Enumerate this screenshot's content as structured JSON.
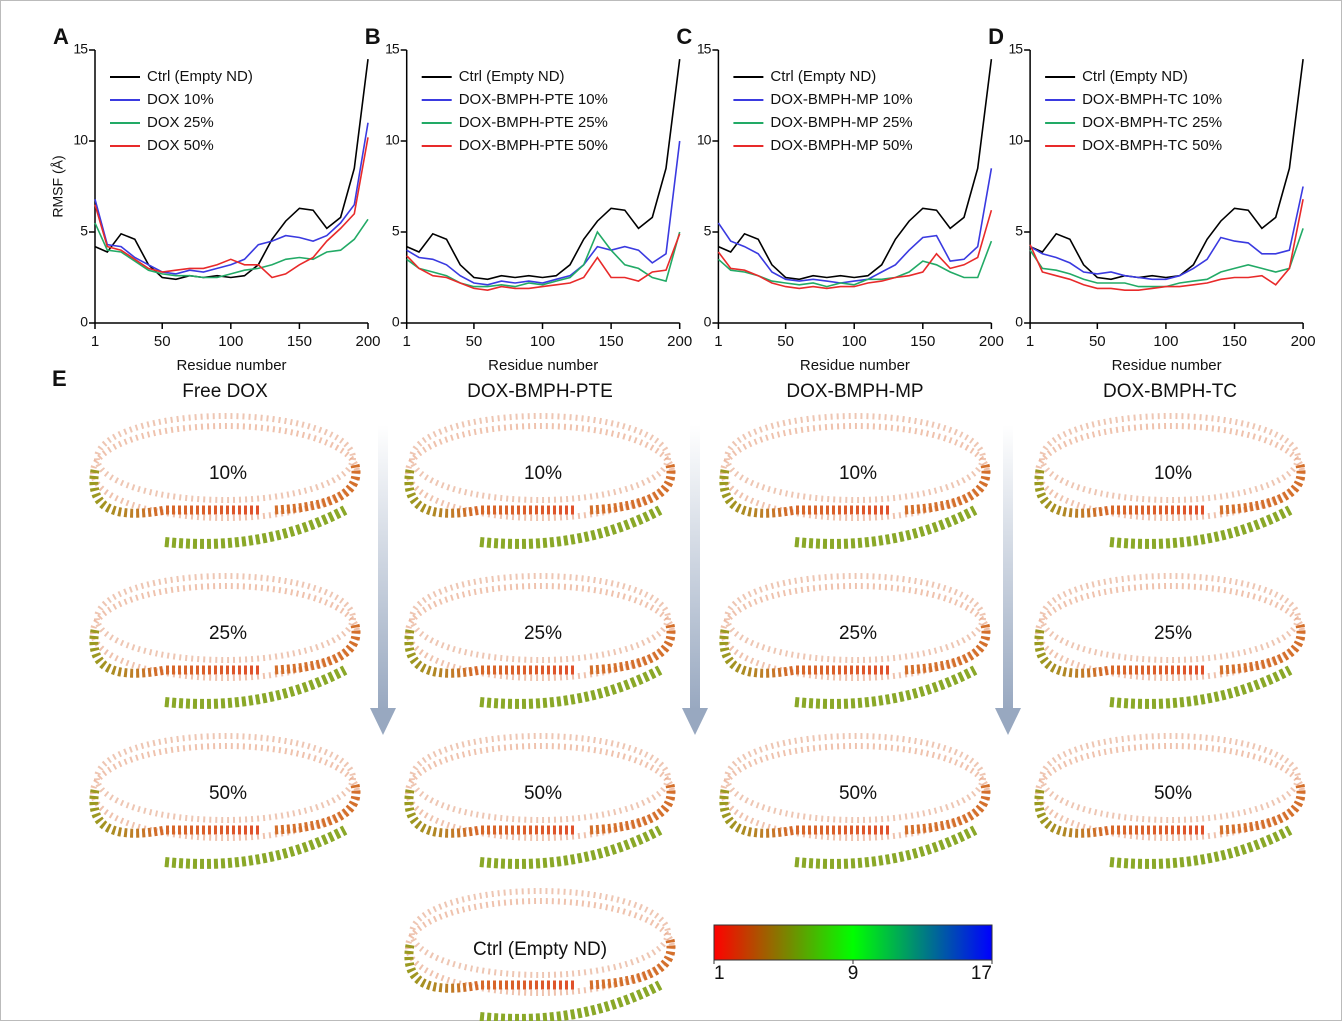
{
  "chart_data": [
    {
      "type": "line",
      "panel": "A",
      "ylabel": "RMSF (Å)",
      "xlabel": "Residue number",
      "x": [
        1,
        10,
        20,
        30,
        40,
        50,
        60,
        70,
        80,
        90,
        100,
        110,
        120,
        130,
        140,
        150,
        160,
        170,
        180,
        190,
        200
      ],
      "xlim": [
        1,
        200
      ],
      "xticks": [
        1,
        50,
        100,
        150,
        200
      ],
      "ylim": [
        0,
        15
      ],
      "yticks": [
        0,
        5,
        10,
        15
      ],
      "series": [
        {
          "name": "Ctrl (Empty ND)",
          "color": "#000000",
          "values": [
            4.2,
            3.9,
            4.9,
            4.6,
            3.2,
            2.5,
            2.4,
            2.6,
            2.5,
            2.6,
            2.5,
            2.6,
            3.2,
            4.6,
            5.6,
            6.3,
            6.2,
            5.2,
            5.8,
            8.5,
            14.5
          ]
        },
        {
          "name": "DOX 10%",
          "color": "#3a3ae0",
          "values": [
            6.8,
            4.3,
            4.2,
            3.6,
            3.2,
            2.8,
            2.7,
            2.9,
            2.8,
            3.0,
            3.2,
            3.5,
            4.3,
            4.5,
            4.8,
            4.7,
            4.5,
            4.8,
            5.5,
            6.5,
            11
          ]
        },
        {
          "name": "DOX 25%",
          "color": "#22aa66",
          "values": [
            5.5,
            4.0,
            3.9,
            3.4,
            2.9,
            2.7,
            2.6,
            2.6,
            2.5,
            2.5,
            2.7,
            2.9,
            3.0,
            3.2,
            3.5,
            3.6,
            3.5,
            3.9,
            4.0,
            4.6,
            5.7
          ]
        },
        {
          "name": "DOX 50%",
          "color": "#e82a2a",
          "values": [
            6.5,
            4.2,
            4.0,
            3.5,
            3.0,
            2.8,
            2.9,
            3.0,
            3.0,
            3.2,
            3.5,
            3.2,
            3.2,
            2.5,
            2.7,
            3.2,
            3.6,
            4.5,
            5.2,
            6.0,
            10.2
          ]
        }
      ]
    },
    {
      "type": "line",
      "panel": "B",
      "xlabel": "Residue number",
      "x": [
        1,
        10,
        20,
        30,
        40,
        50,
        60,
        70,
        80,
        90,
        100,
        110,
        120,
        130,
        140,
        150,
        160,
        170,
        180,
        190,
        200
      ],
      "xlim": [
        1,
        200
      ],
      "xticks": [
        1,
        50,
        100,
        150,
        200
      ],
      "ylim": [
        0,
        15
      ],
      "yticks": [
        0,
        5,
        10,
        15
      ],
      "series": [
        {
          "name": "Ctrl (Empty ND)",
          "color": "#000000",
          "values": [
            4.2,
            3.9,
            4.9,
            4.6,
            3.2,
            2.5,
            2.4,
            2.6,
            2.5,
            2.6,
            2.5,
            2.6,
            3.2,
            4.6,
            5.6,
            6.3,
            6.2,
            5.2,
            5.8,
            8.5,
            14.5
          ]
        },
        {
          "name": "DOX-BMPH-PTE 10%",
          "color": "#3a3ae0",
          "values": [
            4.0,
            3.6,
            3.5,
            3.2,
            2.6,
            2.2,
            2.1,
            2.3,
            2.2,
            2.3,
            2.2,
            2.4,
            2.6,
            3.2,
            4.2,
            4.0,
            4.2,
            4.0,
            3.3,
            3.8,
            10
          ]
        },
        {
          "name": "DOX-BMPH-PTE 25%",
          "color": "#22aa66",
          "values": [
            3.5,
            3.0,
            2.8,
            2.6,
            2.2,
            2.0,
            2.0,
            2.1,
            2.0,
            2.2,
            2.1,
            2.3,
            2.5,
            3.2,
            5.0,
            4.0,
            3.2,
            3.0,
            2.5,
            2.3,
            5.0
          ]
        },
        {
          "name": "DOX-BMPH-PTE 50%",
          "color": "#e82a2a",
          "values": [
            3.7,
            3.0,
            2.6,
            2.5,
            2.2,
            1.9,
            1.8,
            2.0,
            1.9,
            1.9,
            2.0,
            2.1,
            2.2,
            2.5,
            3.6,
            2.5,
            2.5,
            2.3,
            2.8,
            2.9,
            4.9
          ]
        }
      ]
    },
    {
      "type": "line",
      "panel": "C",
      "xlabel": "Residue number",
      "x": [
        1,
        10,
        20,
        30,
        40,
        50,
        60,
        70,
        80,
        90,
        100,
        110,
        120,
        130,
        140,
        150,
        160,
        170,
        180,
        190,
        200
      ],
      "xlim": [
        1,
        200
      ],
      "xticks": [
        1,
        50,
        100,
        150,
        200
      ],
      "ylim": [
        0,
        15
      ],
      "yticks": [
        0,
        5,
        10,
        15
      ],
      "series": [
        {
          "name": "Ctrl (Empty ND)",
          "color": "#000000",
          "values": [
            4.2,
            3.9,
            4.9,
            4.6,
            3.2,
            2.5,
            2.4,
            2.6,
            2.5,
            2.6,
            2.5,
            2.6,
            3.2,
            4.6,
            5.6,
            6.3,
            6.2,
            5.2,
            5.8,
            8.5,
            14.5
          ]
        },
        {
          "name": "DOX-BMPH-MP 10%",
          "color": "#3a3ae0",
          "values": [
            5.5,
            4.5,
            4.2,
            3.8,
            2.8,
            2.4,
            2.3,
            2.4,
            2.3,
            2.2,
            2.3,
            2.4,
            2.8,
            3.2,
            4.0,
            4.7,
            4.8,
            3.4,
            3.5,
            4.2,
            8.5
          ]
        },
        {
          "name": "DOX-BMPH-MP 25%",
          "color": "#22aa66",
          "values": [
            3.5,
            2.9,
            2.8,
            2.6,
            2.3,
            2.2,
            2.1,
            2.2,
            2.0,
            2.2,
            2.1,
            2.4,
            2.4,
            2.5,
            2.8,
            3.4,
            3.2,
            2.8,
            2.5,
            2.5,
            4.5
          ]
        },
        {
          "name": "DOX-BMPH-MP 50%",
          "color": "#e82a2a",
          "values": [
            3.9,
            3.0,
            2.9,
            2.6,
            2.2,
            2.0,
            1.9,
            2.0,
            1.9,
            2.0,
            2.0,
            2.2,
            2.3,
            2.5,
            2.6,
            2.8,
            3.8,
            3.0,
            3.2,
            3.6,
            6.2
          ]
        }
      ]
    },
    {
      "type": "line",
      "panel": "D",
      "xlabel": "Residue number",
      "x": [
        1,
        10,
        20,
        30,
        40,
        50,
        60,
        70,
        80,
        90,
        100,
        110,
        120,
        130,
        140,
        150,
        160,
        170,
        180,
        190,
        200
      ],
      "xlim": [
        1,
        200
      ],
      "xticks": [
        1,
        50,
        100,
        150,
        200
      ],
      "ylim": [
        0,
        15
      ],
      "yticks": [
        0,
        5,
        10,
        15
      ],
      "series": [
        {
          "name": "Ctrl (Empty ND)",
          "color": "#000000",
          "values": [
            4.2,
            3.9,
            4.9,
            4.6,
            3.2,
            2.5,
            2.4,
            2.6,
            2.5,
            2.6,
            2.5,
            2.6,
            3.2,
            4.6,
            5.6,
            6.3,
            6.2,
            5.2,
            5.8,
            8.5,
            14.5
          ]
        },
        {
          "name": "DOX-BMPH-TC 10%",
          "color": "#3a3ae0",
          "values": [
            4.2,
            3.8,
            3.6,
            3.3,
            2.8,
            2.7,
            2.8,
            2.6,
            2.5,
            2.4,
            2.4,
            2.6,
            3.0,
            3.5,
            4.7,
            4.5,
            4.4,
            3.8,
            3.8,
            4.0,
            7.5
          ]
        },
        {
          "name": "DOX-BMPH-TC 25%",
          "color": "#22aa66",
          "values": [
            4.0,
            3.0,
            2.9,
            2.7,
            2.4,
            2.2,
            2.2,
            2.2,
            2.0,
            2.0,
            2.0,
            2.2,
            2.3,
            2.4,
            2.8,
            3.0,
            3.2,
            3.0,
            2.8,
            3.0,
            5.2
          ]
        },
        {
          "name": "DOX-BMPH-TC 50%",
          "color": "#e82a2a",
          "values": [
            4.3,
            2.8,
            2.6,
            2.4,
            2.1,
            1.9,
            1.9,
            1.8,
            1.8,
            1.9,
            2.0,
            2.0,
            2.1,
            2.2,
            2.4,
            2.5,
            2.5,
            2.6,
            2.1,
            3.0,
            6.8
          ]
        }
      ]
    }
  ],
  "panel_e": {
    "panel": "E",
    "columns": [
      "Free DOX",
      "DOX-BMPH-PTE",
      "DOX-BMPH-MP",
      "DOX-BMPH-TC"
    ],
    "rows": [
      "10%",
      "25%",
      "50%"
    ],
    "control": "Ctrl (Empty ND)",
    "colorbar": {
      "range": [
        1,
        17
      ],
      "ticks": [
        1,
        9,
        17
      ],
      "colors": [
        "#ff0000",
        "#00ff00",
        "#0000ff"
      ]
    }
  }
}
